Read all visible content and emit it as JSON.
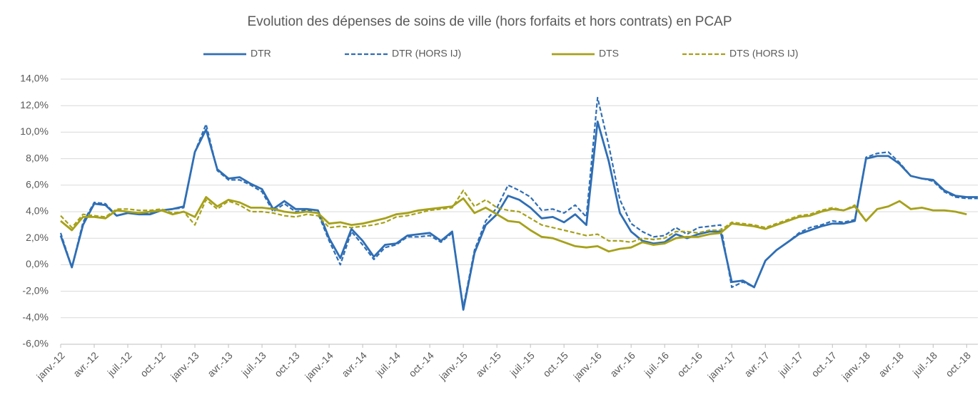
{
  "chart_data": {
    "type": "line",
    "title": "Evolution des dépenses de soins de ville (hors forfaits et hors contrats) en PCAP",
    "categories": [
      "janv.-12",
      null,
      null,
      "avr.-12",
      null,
      null,
      "juil.-12",
      null,
      null,
      "oct.-12",
      null,
      null,
      "janv.-13",
      null,
      null,
      "avr.-13",
      null,
      null,
      "juil.-13",
      null,
      null,
      "oct.-13",
      null,
      null,
      "janv.-14",
      null,
      null,
      "avr.-14",
      null,
      null,
      "juil.-14",
      null,
      null,
      "oct.-14",
      null,
      null,
      "janv.-15",
      null,
      null,
      "avr.-15",
      null,
      null,
      "juil.-15",
      null,
      null,
      "oct.-15",
      null,
      null,
      "janv.-16",
      null,
      null,
      "avr.-16",
      null,
      null,
      "juil.-16",
      null,
      null,
      "oct.-16",
      null,
      null,
      "janv.-17",
      null,
      null,
      "avr.-17",
      null,
      null,
      "juil.-17",
      null,
      null,
      "oct.-17",
      null,
      null,
      "janv.-18",
      null,
      null,
      "avr.-18",
      null,
      null,
      "juil.-18",
      null,
      null,
      "oct.-18",
      null
    ],
    "series": [
      {
        "name": "DTR",
        "color": "#2f6eb5",
        "dash": false,
        "values": [
          2.2,
          -0.2,
          3.0,
          4.6,
          4.5,
          3.7,
          3.9,
          3.8,
          3.8,
          4.1,
          4.2,
          4.4,
          8.5,
          10.2,
          7.2,
          6.5,
          6.6,
          6.1,
          5.7,
          4.2,
          4.8,
          4.2,
          4.2,
          4.1,
          2.0,
          0.5,
          2.7,
          1.8,
          0.6,
          1.5,
          1.6,
          2.2,
          2.3,
          2.4,
          1.8,
          2.5,
          -3.4,
          0.9,
          3.0,
          3.8,
          5.2,
          4.9,
          4.3,
          3.5,
          3.6,
          3.2,
          3.8,
          3.0,
          10.8,
          7.8,
          3.9,
          2.5,
          1.8,
          1.6,
          1.7,
          2.3,
          2.0,
          2.3,
          2.5,
          2.5,
          -1.3,
          -1.2,
          -1.7,
          0.3,
          1.1,
          1.7,
          2.3,
          2.6,
          2.9,
          3.1,
          3.1,
          3.3,
          8.0,
          8.2,
          8.2,
          7.6,
          6.7,
          6.5,
          6.4,
          5.6,
          5.2,
          5.1,
          5.1
        ]
      },
      {
        "name": "DTR (HORS IJ)",
        "color": "#2f6eb5",
        "dash": true,
        "values": [
          2.4,
          -0.2,
          3.2,
          4.7,
          4.6,
          3.7,
          3.9,
          3.9,
          3.9,
          4.1,
          4.2,
          4.3,
          8.5,
          10.6,
          7.1,
          6.4,
          6.4,
          6.0,
          5.5,
          4.0,
          4.6,
          4.0,
          4.1,
          3.9,
          1.8,
          0.0,
          2.5,
          1.5,
          0.4,
          1.3,
          1.5,
          2.1,
          2.1,
          2.2,
          1.7,
          2.4,
          -3.2,
          1.1,
          3.3,
          4.3,
          6.0,
          5.6,
          5.1,
          4.1,
          4.2,
          3.9,
          4.5,
          3.6,
          12.6,
          9.0,
          4.9,
          3.1,
          2.5,
          2.1,
          2.2,
          2.8,
          2.3,
          2.8,
          2.9,
          3.0,
          -1.7,
          -1.3,
          -1.7,
          0.3,
          1.1,
          1.7,
          2.4,
          2.8,
          3.0,
          3.3,
          3.2,
          3.4,
          8.1,
          8.4,
          8.5,
          7.7,
          6.7,
          6.5,
          6.3,
          5.5,
          5.1,
          5.0,
          5.0
        ]
      },
      {
        "name": "DTS",
        "color": "#a6a11a",
        "dash": false,
        "values": [
          3.3,
          2.6,
          3.6,
          3.6,
          3.5,
          4.1,
          4.0,
          3.9,
          4.0,
          4.1,
          3.8,
          4.0,
          3.6,
          5.1,
          4.4,
          4.9,
          4.7,
          4.3,
          4.3,
          4.2,
          4.0,
          3.9,
          4.0,
          3.9,
          3.1,
          3.2,
          3.0,
          3.1,
          3.3,
          3.5,
          3.8,
          3.9,
          4.1,
          4.2,
          4.3,
          4.4,
          5.0,
          3.9,
          4.3,
          3.8,
          3.3,
          3.2,
          2.6,
          2.1,
          2.0,
          1.7,
          1.4,
          1.3,
          1.4,
          1.0,
          1.2,
          1.3,
          1.7,
          1.5,
          1.6,
          2.0,
          2.1,
          2.1,
          2.3,
          2.4,
          3.1,
          3.0,
          2.9,
          2.7,
          3.0,
          3.3,
          3.6,
          3.7,
          4.0,
          4.2,
          4.1,
          4.4,
          3.3,
          4.2,
          4.4,
          4.8,
          4.2,
          4.3,
          4.1,
          4.1,
          4.0,
          3.8,
          null
        ]
      },
      {
        "name": "DTS (HORS IJ)",
        "color": "#a6a11a",
        "dash": true,
        "values": [
          3.7,
          2.8,
          3.8,
          3.7,
          3.6,
          4.2,
          4.2,
          4.1,
          4.1,
          4.2,
          3.9,
          4.0,
          3.0,
          4.9,
          4.2,
          4.8,
          4.5,
          4.0,
          4.0,
          3.9,
          3.7,
          3.6,
          3.8,
          3.7,
          2.8,
          2.9,
          2.8,
          2.9,
          3.0,
          3.2,
          3.6,
          3.7,
          3.9,
          4.1,
          4.2,
          4.3,
          5.6,
          4.4,
          4.9,
          4.3,
          4.1,
          4.0,
          3.5,
          3.0,
          2.8,
          2.6,
          2.4,
          2.2,
          2.3,
          1.8,
          1.8,
          1.7,
          2.0,
          1.9,
          2.0,
          2.5,
          2.5,
          2.4,
          2.6,
          2.6,
          3.2,
          3.1,
          3.0,
          2.8,
          3.1,
          3.4,
          3.7,
          3.8,
          4.1,
          4.3,
          4.1,
          4.5,
          3.3,
          4.2,
          4.4,
          4.8,
          4.2,
          4.3,
          4.1,
          4.1,
          4.0,
          3.8,
          null
        ]
      }
    ],
    "ylim": [
      -6,
      14
    ],
    "yticks": [
      {
        "value": -6,
        "label": "-6,0%"
      },
      {
        "value": -4,
        "label": "-4,0%"
      },
      {
        "value": -2,
        "label": "-2,0%"
      },
      {
        "value": 0,
        "label": "0,0%"
      },
      {
        "value": 2,
        "label": "2,0%"
      },
      {
        "value": 4,
        "label": "4,0%"
      },
      {
        "value": 6,
        "label": "6,0%"
      },
      {
        "value": 8,
        "label": "8,0%"
      },
      {
        "value": 10,
        "label": "10,0%"
      },
      {
        "value": 12,
        "label": "12,0%"
      },
      {
        "value": 14,
        "label": "14,0%"
      }
    ],
    "grid": true,
    "legend": "top"
  }
}
